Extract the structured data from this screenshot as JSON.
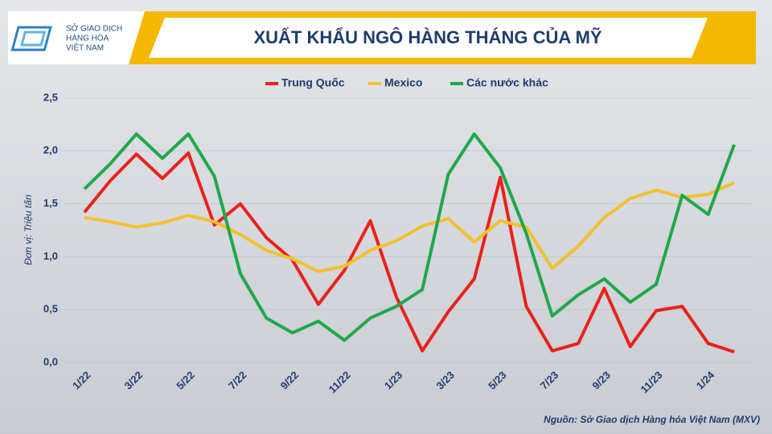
{
  "logo": {
    "lines": [
      "SỞ GIAO DỊCH",
      "HÀNG HÓA",
      "VIỆT NAM"
    ]
  },
  "chart_data": {
    "type": "line",
    "title": "XUẤT KHẨU NGÔ HÀNG THÁNG CỦA MỸ",
    "y_label": "Đơn vị: Triệu tấn",
    "source": "Nguồn: Sở Giao dịch Hàng hóa Việt Nam (MXV)",
    "categories": [
      "1/22",
      null,
      "3/22",
      null,
      "5/22",
      null,
      "7/22",
      null,
      "9/22",
      null,
      "11/22",
      null,
      "1/23",
      null,
      "3/23",
      null,
      "5/23",
      null,
      "7/23",
      null,
      "9/23",
      null,
      "11/23",
      null,
      "1/24",
      null
    ],
    "series": [
      {
        "name": "Trung Quốc",
        "color": "#e8221c",
        "values": [
          1.42,
          1.72,
          1.97,
          1.74,
          1.98,
          1.3,
          1.5,
          1.18,
          0.97,
          0.55,
          0.87,
          1.34,
          0.62,
          0.11,
          0.48,
          0.79,
          1.75,
          0.53,
          0.11,
          0.18,
          0.7,
          0.15,
          0.49,
          0.53,
          0.18,
          0.1
        ]
      },
      {
        "name": "Mexico",
        "color": "#f2c12e",
        "values": [
          1.37,
          1.33,
          1.28,
          1.32,
          1.39,
          1.33,
          1.21,
          1.06,
          0.98,
          0.86,
          0.91,
          1.06,
          1.15,
          1.29,
          1.36,
          1.14,
          1.34,
          1.28,
          0.89,
          1.1,
          1.37,
          1.55,
          1.63,
          1.56,
          1.59,
          1.7
        ]
      },
      {
        "name": "Các nước khác",
        "color": "#1fa84a",
        "values": [
          1.64,
          1.88,
          2.16,
          1.93,
          2.16,
          1.76,
          0.84,
          0.42,
          0.28,
          0.39,
          0.21,
          0.42,
          0.53,
          0.69,
          1.78,
          2.16,
          1.84,
          1.22,
          0.44,
          0.64,
          0.79,
          0.57,
          0.74,
          1.58,
          1.4,
          2.06
        ]
      }
    ],
    "ylim": [
      0,
      2.5
    ],
    "yticks": [
      {
        "value": 0,
        "label": "0,0"
      },
      {
        "value": 0.5,
        "label": "0,5"
      },
      {
        "value": 1,
        "label": "1,0"
      },
      {
        "value": 1.5,
        "label": "1,5"
      },
      {
        "value": 2,
        "label": "2,0"
      },
      {
        "value": 2.5,
        "label": "2,5"
      }
    ],
    "grid": true
  }
}
